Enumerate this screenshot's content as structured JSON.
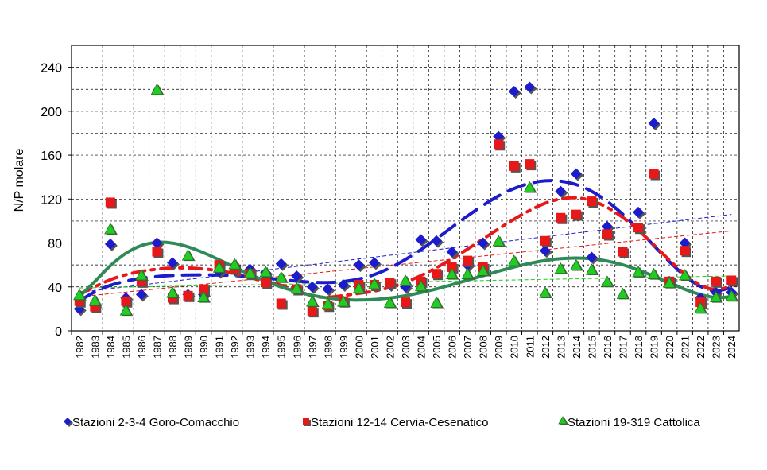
{
  "chart_data": {
    "type": "scatter",
    "ylabel": "N/P molare",
    "xlabel": "",
    "ylim": [
      0,
      260
    ],
    "yticks": [
      0,
      40,
      80,
      120,
      160,
      200,
      240
    ],
    "categories": [
      "1982",
      "1983",
      "1984",
      "1985",
      "1986",
      "1987",
      "1988",
      "1989",
      "1990",
      "1991",
      "1992",
      "1993",
      "1994",
      "1995",
      "1996",
      "1997",
      "1998",
      "1999",
      "2000",
      "2001",
      "2002",
      "2003",
      "2004",
      "2005",
      "2006",
      "2007",
      "2008",
      "2009",
      "2010",
      "2011",
      "2012",
      "2013",
      "2014",
      "2015",
      "2016",
      "2017",
      "2018",
      "2019",
      "2020",
      "2021",
      "2022",
      "2023",
      "2024"
    ],
    "grid": true,
    "legend_position": "bottom",
    "series": [
      {
        "name": "Stazioni 2-3-4 Goro-Comacchio",
        "color": "#1c1ccc",
        "marker": "diamond",
        "values": [
          20,
          23,
          79,
          30,
          33,
          80,
          62,
          33,
          33,
          54,
          55,
          56,
          53,
          61,
          50,
          40,
          38,
          42,
          60,
          62,
          42,
          40,
          83,
          82,
          72,
          60,
          80,
          177,
          218,
          222,
          73,
          127,
          143,
          67,
          95,
          72,
          108,
          189,
          45,
          80,
          30,
          35,
          35
        ],
        "trend_curve": [
          27,
          35.5,
          41.4,
          45.3,
          47.9,
          49.5,
          50.4,
          50.9,
          51,
          50.8,
          50.3,
          49.4,
          48.2,
          46.7,
          45.3,
          44.3,
          44,
          44.9,
          47.2,
          51.2,
          57.2,
          64.9,
          73.9,
          83.9,
          94.3,
          104.6,
          114.3,
          122.8,
          129.6,
          134.3,
          136.6,
          136.3,
          133.2,
          127,
          117.9,
          106.2,
          92.5,
          77.7,
          63.1,
          50.1,
          40.5,
          36.3,
          39.6
        ],
        "trend_line": [
          35,
          106
        ]
      },
      {
        "name": "Stazioni 12-14 Cervia-Cesenatico",
        "color": "#e81818",
        "marker": "square",
        "values": [
          27,
          22,
          117,
          27,
          45,
          72,
          30,
          32,
          38,
          60,
          57,
          52,
          44,
          25,
          38,
          18,
          23,
          27,
          42,
          42,
          44,
          26,
          45,
          52,
          58,
          64,
          58,
          170,
          150,
          152,
          82,
          103,
          106,
          118,
          88,
          72,
          94,
          143,
          45,
          73,
          26,
          45,
          46
        ],
        "trend_curve": [
          33.4,
          40.2,
          46.6,
          51.1,
          54.2,
          56.1,
          57.2,
          57.2,
          56.3,
          54.8,
          52.1,
          48.5,
          44.6,
          41.5,
          36.8,
          31.9,
          30.5,
          32.1,
          34.1,
          36.2,
          39.6,
          44.3,
          50.3,
          57.5,
          65.6,
          74.4,
          83.6,
          92.8,
          101.6,
          109.6,
          116.2,
          120.1,
          121.2,
          118.5,
          112.4,
          103.3,
          91.7,
          78.3,
          64.4,
          51.7,
          41.8,
          37.5,
          40.9
        ],
        "trend_line": [
          31,
          91
        ]
      },
      {
        "name": "Stazioni 19-319 Cattolica",
        "color": "#22cc22",
        "marker": "triangle",
        "values": [
          32,
          27,
          92,
          18,
          50,
          219,
          34,
          68,
          30,
          57,
          60,
          52,
          53,
          48,
          38,
          26,
          24,
          26,
          38,
          42,
          25,
          45,
          40,
          25,
          51,
          51,
          54,
          81,
          63,
          130,
          34,
          56,
          59,
          55,
          44,
          33,
          53,
          51,
          43,
          50,
          20,
          30,
          31
        ],
        "trend_curve": [
          31,
          45,
          59.3,
          70.6,
          77.7,
          80.6,
          79.9,
          76.5,
          71.1,
          64.7,
          57.9,
          51.3,
          45.3,
          40,
          35.7,
          32.3,
          29.9,
          28.4,
          28,
          28.5,
          29.9,
          32,
          34.8,
          38.2,
          42,
          46.1,
          50.2,
          54.3,
          58.1,
          61.4,
          64,
          65.7,
          66.3,
          65.6,
          63.5,
          60.1,
          55.4,
          49.8,
          43.7,
          37.8,
          33,
          30.3,
          31.1
        ],
        "trend_line": [
          39,
          50
        ]
      }
    ]
  }
}
